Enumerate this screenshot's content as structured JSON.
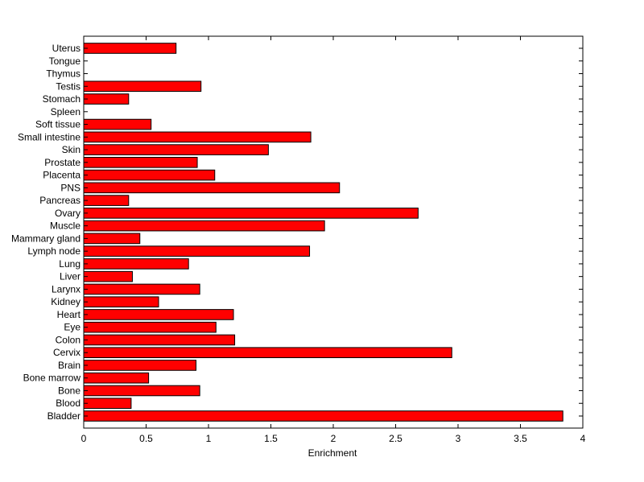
{
  "chart_data": {
    "type": "bar",
    "orientation": "horizontal",
    "categories": [
      "Bladder",
      "Blood",
      "Bone",
      "Bone marrow",
      "Brain",
      "Cervix",
      "Colon",
      "Eye",
      "Heart",
      "Kidney",
      "Larynx",
      "Liver",
      "Lung",
      "Lymph node",
      "Mammary gland",
      "Muscle",
      "Ovary",
      "Pancreas",
      "PNS",
      "Placenta",
      "Prostate",
      "Skin",
      "Small intestine",
      "Soft tissue",
      "Spleen",
      "Stomach",
      "Testis",
      "Thymus",
      "Tongue",
      "Uterus"
    ],
    "values": [
      3.84,
      0.38,
      0.93,
      0.52,
      0.9,
      2.95,
      1.21,
      1.06,
      1.2,
      0.6,
      0.93,
      0.39,
      0.84,
      1.81,
      0.45,
      1.93,
      2.68,
      0.36,
      2.05,
      1.05,
      0.91,
      1.48,
      1.82,
      0.54,
      0,
      0.36,
      0.94,
      0,
      0,
      0.74
    ],
    "title": "",
    "xlabel": "Enrichment",
    "ylabel": "",
    "xlim": [
      0,
      4
    ],
    "xticks": [
      "0",
      "0.5",
      "1",
      "1.5",
      "2",
      "2.5",
      "3",
      "3.5",
      "4"
    ],
    "grid": false,
    "colors": {
      "bar_fill": "#ff0000",
      "bar_edge": "#000000"
    }
  }
}
